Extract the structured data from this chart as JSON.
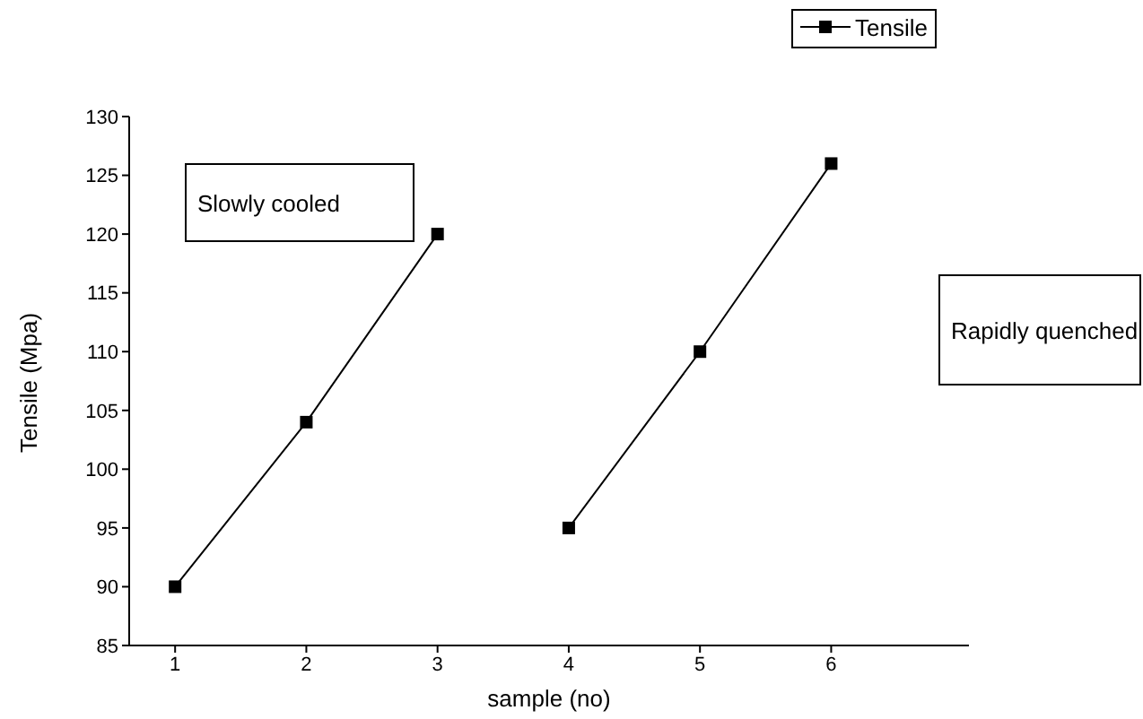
{
  "chart_data": {
    "type": "line",
    "xlabel": "sample (no)",
    "ylabel": "Tensile (Mpa)",
    "xlim": [
      0.65,
      7.05
    ],
    "xticks": [
      1,
      2,
      3,
      4,
      5,
      6
    ],
    "ylim": [
      85,
      130
    ],
    "yticks": [
      85,
      90,
      95,
      100,
      105,
      110,
      115,
      120,
      125,
      130
    ],
    "series": [
      {
        "name": "Tensile",
        "color": "#000000",
        "x": [
          1,
          2,
          3
        ],
        "values": [
          90,
          104,
          120
        ]
      },
      {
        "color": "#000000",
        "x": [
          4,
          5,
          6
        ],
        "values": [
          95,
          110,
          126
        ]
      }
    ],
    "marker": "square",
    "line_style": "solid",
    "legend": "top right",
    "grid": false,
    "annotations": [
      "Slowly cooled",
      "Rapidly quenched"
    ]
  }
}
